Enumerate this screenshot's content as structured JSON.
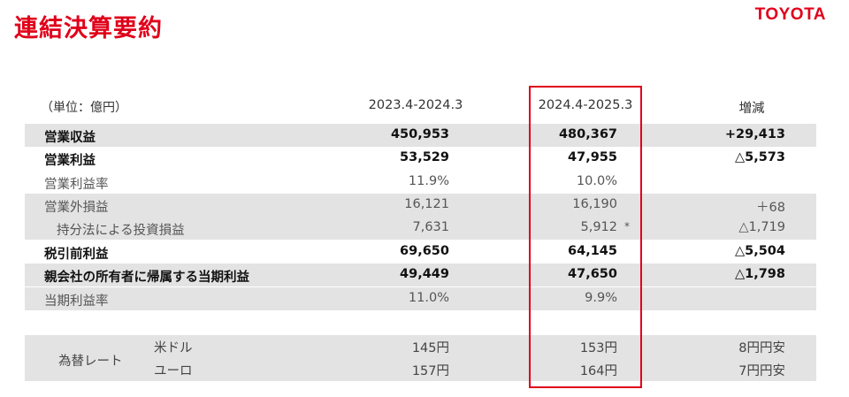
{
  "title": "連結決算要約",
  "logo": "TOYOTA",
  "header": {
    "unit": "（単位：億円）",
    "period1": "2023.4-2024.3",
    "period2": "2024.4-2025.3",
    "change": "増減"
  },
  "rows": [
    {
      "label": "営業収益",
      "v1": "450,953",
      "v2": "480,367",
      "v3": "+29,413",
      "mark": ""
    },
    {
      "label": "営業利益",
      "v1": "53,529",
      "v2": "47,955",
      "v3": "△5,573",
      "mark": ""
    },
    {
      "label": "営業利益率",
      "v1": "11.9%",
      "v2": "10.0%",
      "v3": "",
      "mark": ""
    },
    {
      "label": "営業外損益",
      "v1": "16,121",
      "v2": "16,190",
      "v3": "＋68",
      "mark": ""
    },
    {
      "label": "持分法による投資損益",
      "v1": "7,631",
      "v2": "5,912",
      "v3": "△1,719",
      "mark": "*"
    },
    {
      "label": "税引前利益",
      "v1": "69,650",
      "v2": "64,145",
      "v3": "△5,504",
      "mark": ""
    },
    {
      "label": "親会社の所有者に帰属する当期利益",
      "v1": "49,449",
      "v2": "47,650",
      "v3": "△1,798",
      "mark": ""
    },
    {
      "label": "当期利益率",
      "v1": "11.0%",
      "v2": "9.9%",
      "v3": "",
      "mark": ""
    }
  ],
  "fx": {
    "label": "為替レート",
    "usd": {
      "label": "米ドル",
      "v1": "145円",
      "v2": "153円",
      "v3": "8円円安"
    },
    "eur": {
      "label": "ユーロ",
      "v1": "157円",
      "v2": "164円",
      "v3": "7円円安"
    }
  }
}
